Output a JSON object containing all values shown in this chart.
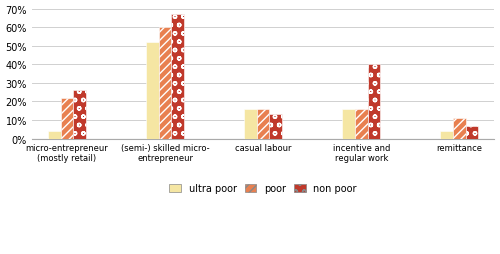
{
  "categories": [
    "micro-entrepreneur\n(mostly retail)",
    "(semi-) skilled micro-\nentrepreneur",
    "casual labour",
    "incentive and\nregular work",
    "remittance"
  ],
  "series": {
    "ultra poor": [
      0.04,
      0.52,
      0.16,
      0.16,
      0.04
    ],
    "poor": [
      0.22,
      0.6,
      0.16,
      0.16,
      0.11
    ],
    "non poor": [
      0.26,
      0.67,
      0.13,
      0.4,
      0.07
    ]
  },
  "colors": {
    "ultra poor": "#F5E6A3",
    "poor": "#E88050",
    "non poor": "#C0392B"
  },
  "hatches": {
    "ultra poor": "",
    "poor": "////",
    "non poor": "oo"
  },
  "ylim": [
    0,
    0.7
  ],
  "yticks": [
    0,
    0.1,
    0.2,
    0.3,
    0.4,
    0.5,
    0.6,
    0.7
  ],
  "legend_labels": [
    "ultra poor",
    "poor",
    "non poor"
  ],
  "background_color": "#ffffff",
  "grid_color": "#d0d0d0",
  "bar_width": 0.18,
  "group_width": 1.4
}
